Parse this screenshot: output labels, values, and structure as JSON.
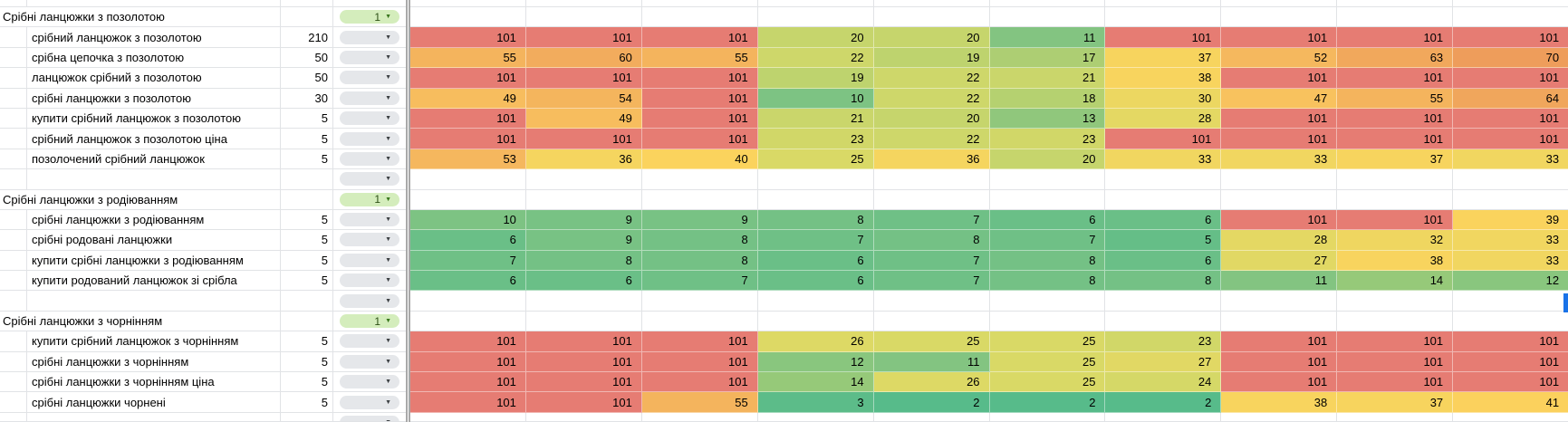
{
  "sheet": {
    "dropdown_arrow": "▼",
    "columns": {
      "keyword": "",
      "volume": "",
      "dropdown": "",
      "heat_columns": 10
    },
    "sections": [
      {
        "title": "Срібні ланцюжки з позолотою",
        "group_value": "1",
        "rows": [
          {
            "keyword": "срібний ланцюжок з позолотою",
            "volume": "210",
            "values": [
              101,
              101,
              101,
              20,
              20,
              11,
              101,
              101,
              101,
              101
            ]
          },
          {
            "keyword": "срібна цепочка з позолотою",
            "volume": "50",
            "values": [
              55,
              60,
              55,
              22,
              19,
              17,
              37,
              52,
              63,
              70
            ]
          },
          {
            "keyword": "ланцюжок срібний з позолотою",
            "volume": "50",
            "values": [
              101,
              101,
              101,
              19,
              22,
              21,
              38,
              101,
              101,
              101
            ]
          },
          {
            "keyword": "срібні ланцюжки з позолотою",
            "volume": "30",
            "values": [
              49,
              54,
              101,
              10,
              22,
              18,
              30,
              47,
              55,
              64
            ]
          },
          {
            "keyword": "купити срібний ланцюжок з позолотою",
            "volume": "5",
            "values": [
              101,
              49,
              101,
              21,
              20,
              13,
              28,
              101,
              101,
              101
            ]
          },
          {
            "keyword": "срібний ланцюжок з позолотою ціна",
            "volume": "5",
            "values": [
              101,
              101,
              101,
              23,
              22,
              23,
              101,
              101,
              101,
              101
            ]
          },
          {
            "keyword": "позолочений срібний ланцюжок",
            "volume": "5",
            "values": [
              53,
              36,
              40,
              25,
              36,
              20,
              33,
              33,
              37,
              33
            ]
          }
        ]
      },
      {
        "title": "Срібні ланцюжки з родіюванням",
        "group_value": "1",
        "rows": [
          {
            "keyword": "срібні ланцюжки з родіюванням",
            "volume": "5",
            "values": [
              10,
              9,
              9,
              8,
              7,
              6,
              6,
              101,
              101,
              39
            ]
          },
          {
            "keyword": "срібні родовані ланцюжки",
            "volume": "5",
            "values": [
              6,
              9,
              8,
              7,
              8,
              7,
              5,
              28,
              32,
              33
            ]
          },
          {
            "keyword": "купити срібні ланцюжки з родіюванням",
            "volume": "5",
            "values": [
              7,
              8,
              8,
              6,
              7,
              8,
              6,
              27,
              38,
              33
            ]
          },
          {
            "keyword": "купити родований ланцюжок зі срібла",
            "volume": "5",
            "values": [
              6,
              6,
              7,
              6,
              7,
              8,
              8,
              11,
              14,
              12
            ]
          }
        ]
      },
      {
        "title": "Срібні ланцюжки з чорнінням",
        "group_value": "1",
        "rows": [
          {
            "keyword": "купити срібний ланцюжок з чорнінням",
            "volume": "5",
            "values": [
              101,
              101,
              101,
              26,
              25,
              25,
              23,
              101,
              101,
              101
            ]
          },
          {
            "keyword": "срібні ланцюжки з чорнінням",
            "volume": "5",
            "values": [
              101,
              101,
              101,
              12,
              11,
              25,
              27,
              101,
              101,
              101
            ]
          },
          {
            "keyword": "срібні ланцюжки з чорнінням ціна",
            "volume": "5",
            "values": [
              101,
              101,
              101,
              14,
              26,
              25,
              24,
              101,
              101,
              101
            ]
          },
          {
            "keyword": "срібні ланцюжки чорнені",
            "volume": "5",
            "values": [
              101,
              101,
              55,
              3,
              2,
              2,
              2,
              38,
              37,
              41
            ]
          }
        ]
      }
    ]
  },
  "heat_scale": {
    "stops": [
      [
        2,
        "#57bb8a"
      ],
      [
        10,
        "#7dc383"
      ],
      [
        15,
        "#9cca77"
      ],
      [
        20,
        "#c6d56c"
      ],
      [
        25,
        "#d9d966"
      ],
      [
        30,
        "#ecd761"
      ],
      [
        40,
        "#fbd35d"
      ],
      [
        50,
        "#f6bb5e"
      ],
      [
        70,
        "#ee9d5b"
      ],
      [
        101,
        "#e67c73"
      ]
    ]
  },
  "colors": {
    "grid_line": "#e1e3e6",
    "pane_divider": "#a9a9a9",
    "pill_gray_bg": "#e5e7ea",
    "pill_green_bg": "#d4edbc",
    "pill_green_text": "#38761d",
    "selection": "#1a73e8",
    "text": "#000000"
  }
}
